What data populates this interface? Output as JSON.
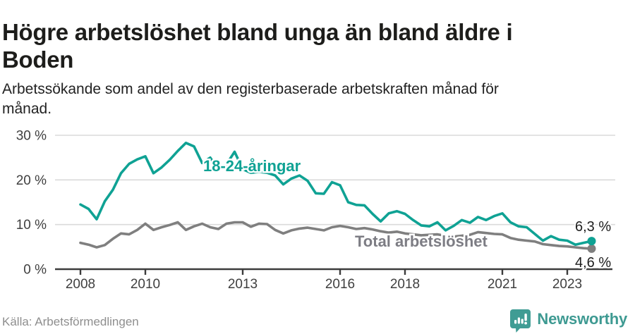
{
  "chart_data": {
    "type": "line",
    "title": "Högre arbetslöshet bland unga än bland äldre i\nBoden",
    "subtitle": "Arbetssökande som andel av den registerbaserade arbetskraften månad för\nmånad.",
    "x_start": 2008,
    "x_step": 0.25,
    "xlim": [
      2008,
      2023.75
    ],
    "ylim": [
      0,
      32
    ],
    "grid": "horizontal",
    "legend_position": "inline",
    "y_ticks": [
      {
        "value": 0,
        "label": "0 %"
      },
      {
        "value": 10,
        "label": "10 %"
      },
      {
        "value": 20,
        "label": "20 %"
      },
      {
        "value": 30,
        "label": "30 %"
      }
    ],
    "x_ticks": [
      {
        "value": 2008,
        "label": "2008"
      },
      {
        "value": 2010,
        "label": "2010"
      },
      {
        "value": 2013,
        "label": "2013"
      },
      {
        "value": 2016,
        "label": "2016"
      },
      {
        "value": 2018,
        "label": "2018"
      },
      {
        "value": 2021,
        "label": "2021"
      },
      {
        "value": 2023,
        "label": "2023"
      }
    ],
    "series": [
      {
        "name": "Total arbetslöshet",
        "color": "#7f7f7f",
        "label_color": "#7d7d84",
        "end_label": "4,6 %",
        "end_value": 4.6,
        "values": [
          5.9,
          5.5,
          4.9,
          5.4,
          6.8,
          8.0,
          7.8,
          8.8,
          10.2,
          8.8,
          9.4,
          9.9,
          10.5,
          8.8,
          9.6,
          10.2,
          9.4,
          9.0,
          10.2,
          10.5,
          10.5,
          9.5,
          10.2,
          10.1,
          8.8,
          8.0,
          8.7,
          9.1,
          9.3,
          9.0,
          8.7,
          9.4,
          9.7,
          9.4,
          9.0,
          9.2,
          8.9,
          8.5,
          8.2,
          8.4,
          8.0,
          7.8,
          7.6,
          7.7,
          7.8,
          7.5,
          7.3,
          7.5,
          7.7,
          8.3,
          8.1,
          7.9,
          7.8,
          7.0,
          6.6,
          6.4,
          6.2,
          5.6,
          5.4,
          5.2,
          5.1,
          4.9,
          4.7,
          4.6
        ]
      },
      {
        "name": "18-24-åringar",
        "color": "#0fa294",
        "label_color": "#0fa294",
        "end_label": "6,3 %",
        "end_value": 6.3,
        "values": [
          14.5,
          13.5,
          11.2,
          15.2,
          17.8,
          21.5,
          23.6,
          24.6,
          25.3,
          21.5,
          22.8,
          24.5,
          26.5,
          28.3,
          27.5,
          23.8,
          25.0,
          22.2,
          23.5,
          26.3,
          22.4,
          21.6,
          21.8,
          21.6,
          21.0,
          19.0,
          20.3,
          21.0,
          19.8,
          17.0,
          16.9,
          19.5,
          18.8,
          15.0,
          14.4,
          14.3,
          12.4,
          10.7,
          12.5,
          13.0,
          12.4,
          11.0,
          9.8,
          9.6,
          10.5,
          8.7,
          9.7,
          11.0,
          10.4,
          11.7,
          11.0,
          11.9,
          12.5,
          10.5,
          9.6,
          9.4,
          7.9,
          6.4,
          7.4,
          6.6,
          6.4,
          5.5,
          5.9,
          6.3
        ]
      }
    ]
  },
  "footer": {
    "source": "Källa: Arbetsförmedlingen",
    "brand": "Newsworthy"
  },
  "colors": {
    "axis": "#3c3c3c",
    "grid": "#dadada",
    "tick_label": "#3f3f3f",
    "end_label": "#1c1c1c",
    "brand_teal": "#3f9c94"
  }
}
